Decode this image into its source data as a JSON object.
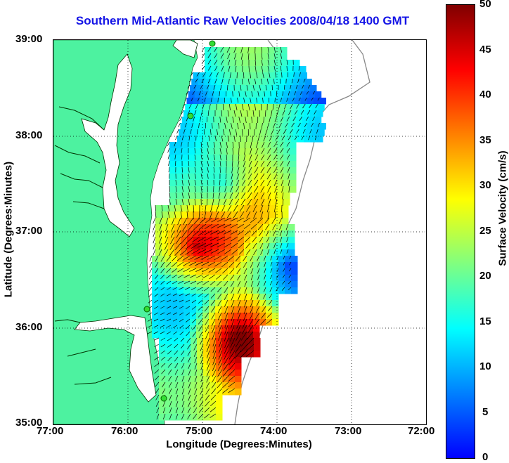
{
  "title": "Southern Mid-Atlantic Raw Velocities 2008/04/18 1400 GMT",
  "xaxis": {
    "label": "Longitude (Degrees:Minutes)",
    "ticks": [
      "77:00",
      "76:00",
      "75:00",
      "74:00",
      "73:00",
      "72:00"
    ]
  },
  "yaxis": {
    "label": "Latitude (Degrees:Minutes)",
    "ticks": [
      "39:00",
      "38:00",
      "37:00",
      "36:00",
      "35:00"
    ]
  },
  "colorbar": {
    "label": "Surface Velocity (cm/s)",
    "ticks": [
      "50",
      "45",
      "40",
      "35",
      "30",
      "25",
      "20",
      "15",
      "10",
      "5",
      "0"
    ],
    "range": [
      0,
      50
    ],
    "colors": [
      "#0000ff",
      "#0080ff",
      "#00ffff",
      "#80ff80",
      "#ffff00",
      "#ff8000",
      "#ff0000",
      "#800000"
    ]
  },
  "map": {
    "lon_range": [
      -77,
      -72
    ],
    "lat_range": [
      35,
      39
    ],
    "land_color": "#4df2a0",
    "grid": "dotted",
    "radar_sites": [
      "site-cape-may",
      "site-wallops",
      "site-duck",
      "site-hatteras"
    ]
  }
}
